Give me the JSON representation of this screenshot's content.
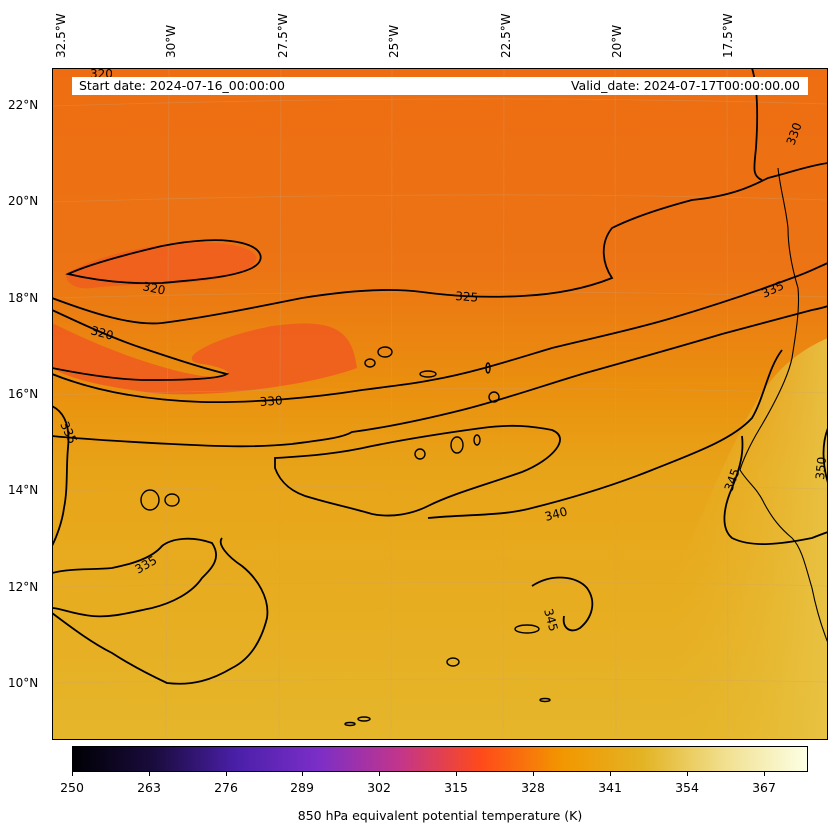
{
  "info": {
    "start_date": "Start date: 2024-07-16_00:00:00",
    "valid_date": "Valid_date: 2024-07-17T00:00:00.00"
  },
  "longitude_labels": [
    "32.5°W",
    "30°W",
    "27.5°W",
    "25°W",
    "22.5°W",
    "20°W",
    "17.5°W"
  ],
  "latitude_labels": [
    "22°N",
    "20°N",
    "18°N",
    "16°N",
    "14°N",
    "12°N",
    "10°N"
  ],
  "contour_labels": [
    "320",
    "320",
    "320",
    "325",
    "330",
    "330",
    "335",
    "335",
    "335",
    "340",
    "345",
    "345",
    "350"
  ],
  "colorbar": {
    "tick_labels": [
      "250",
      "263",
      "276",
      "289",
      "302",
      "315",
      "328",
      "341",
      "354",
      "367"
    ],
    "title": "850 hPa equivalent potential temperature (K)",
    "colors": [
      "#000004",
      "#1a0c3e",
      "#4a1fa8",
      "#7b2ec8",
      "#c2358c",
      "#ff4a1a",
      "#f29700",
      "#e3b425",
      "#f1e090",
      "#fcffe4"
    ]
  },
  "colors": {
    "warm_band": "#ee6a14",
    "mid_band": "#e88a10",
    "cool_band": "#e7b12a",
    "contour": "#000000"
  }
}
